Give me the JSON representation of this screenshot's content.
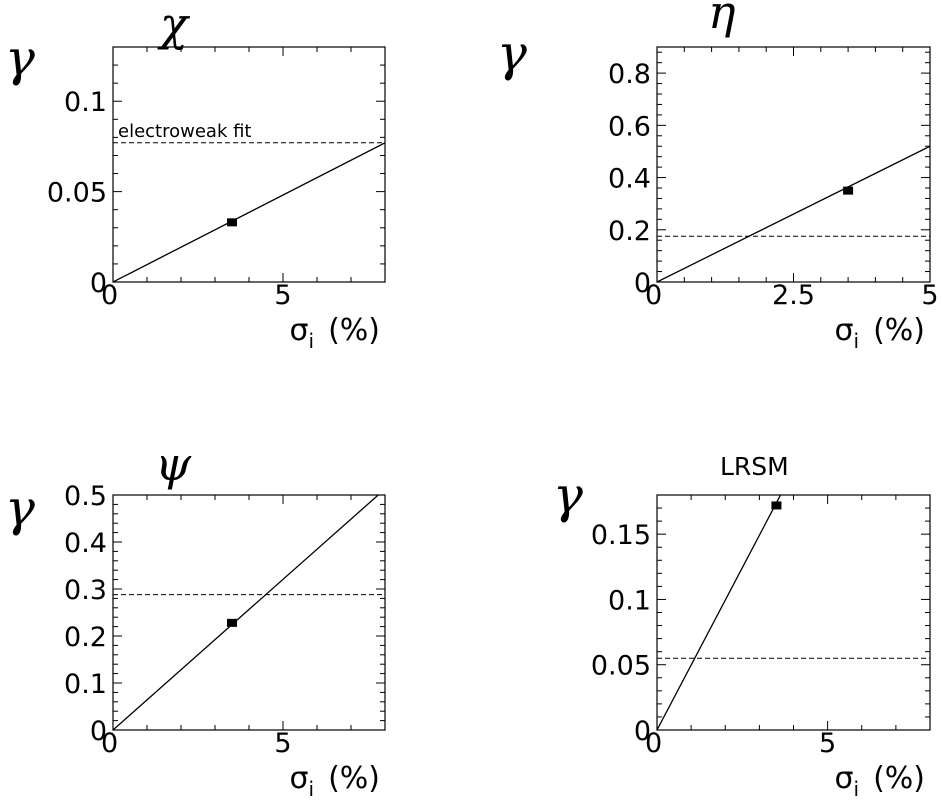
{
  "chart_data": [
    {
      "type": "line",
      "title": "χ",
      "ylabel": "γ",
      "xlabel": "σi (%)",
      "xlabel_symbol": "σ",
      "xlabel_sub": "i",
      "xlabel_unit": "(%)",
      "xlim": [
        0,
        8
      ],
      "ylim": [
        0,
        0.13
      ],
      "xticks": [
        0,
        5
      ],
      "xtick_labels": [
        "0",
        "5"
      ],
      "yticks": [
        0,
        0.05,
        0.1
      ],
      "ytick_labels": [
        "0",
        "0.05",
        "0.1"
      ],
      "line": {
        "x": [
          0,
          8
        ],
        "y": [
          0,
          0.077
        ]
      },
      "reference_line": {
        "y": 0.077,
        "style": "dashed",
        "label": "electroweak fit"
      },
      "point": {
        "x": 3.5,
        "y": 0.033
      }
    },
    {
      "type": "line",
      "title": "η",
      "ylabel": "γ",
      "xlabel": "σi (%)",
      "xlabel_symbol": "σ",
      "xlabel_sub": "i",
      "xlabel_unit": "(%)",
      "xlim": [
        0,
        5
      ],
      "ylim": [
        0,
        0.9
      ],
      "xticks": [
        0,
        2.5,
        5
      ],
      "xtick_labels": [
        "0",
        "2.5",
        "5"
      ],
      "yticks": [
        0,
        0.2,
        0.4,
        0.6,
        0.8
      ],
      "ytick_labels": [
        "0",
        "0.2",
        "0.4",
        "0.6",
        "0.8"
      ],
      "line": {
        "x": [
          0,
          5
        ],
        "y": [
          0,
          0.52
        ]
      },
      "reference_line": {
        "y": 0.175,
        "style": "dashed",
        "label": ""
      },
      "point": {
        "x": 3.5,
        "y": 0.35
      }
    },
    {
      "type": "line",
      "title": "ψ",
      "ylabel": "γ",
      "xlabel": "σi (%)",
      "xlabel_symbol": "σ",
      "xlabel_sub": "i",
      "xlabel_unit": "(%)",
      "xlim": [
        0,
        8
      ],
      "ylim": [
        0,
        0.5
      ],
      "xticks": [
        0,
        5
      ],
      "xtick_labels": [
        "0",
        "5"
      ],
      "yticks": [
        0,
        0.1,
        0.2,
        0.3,
        0.4,
        0.5
      ],
      "ytick_labels": [
        "0",
        "0.1",
        "0.2",
        "0.3",
        "0.4",
        "0.5"
      ],
      "line": {
        "x": [
          0,
          7.8
        ],
        "y": [
          0,
          0.5
        ]
      },
      "reference_line": {
        "y": 0.288,
        "style": "dashed",
        "label": ""
      },
      "point": {
        "x": 3.5,
        "y": 0.228
      }
    },
    {
      "type": "line",
      "title": "LRSM",
      "ylabel": "γ",
      "xlabel": "σi (%)",
      "xlabel_symbol": "σ",
      "xlabel_sub": "i",
      "xlabel_unit": "(%)",
      "xlim": [
        0,
        8
      ],
      "ylim": [
        0,
        0.18
      ],
      "xticks": [
        0,
        5
      ],
      "xtick_labels": [
        "0",
        "5"
      ],
      "yticks": [
        0,
        0.05,
        0.1,
        0.15
      ],
      "ytick_labels": [
        "0",
        "0.05",
        "0.1",
        "0.15"
      ],
      "line": {
        "x": [
          0,
          3.62
        ],
        "y": [
          0,
          0.18
        ]
      },
      "reference_line": {
        "y": 0.055,
        "style": "dashed",
        "label": ""
      },
      "point": {
        "x": 3.5,
        "y": 0.172
      }
    }
  ]
}
